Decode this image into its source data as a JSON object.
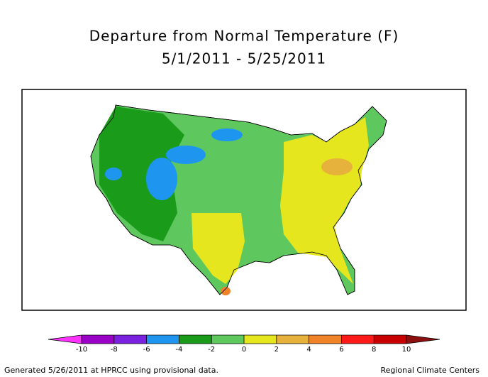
{
  "header": {
    "title": "Departure from Normal Temperature (F)",
    "subtitle": "5/1/2011 - 5/25/2011"
  },
  "legend": {
    "bounds": [
      -10,
      -8,
      -6,
      -4,
      -2,
      0,
      2,
      4,
      6,
      8,
      10
    ],
    "colors": [
      "#ff33ff",
      "#9b00c8",
      "#7a22e0",
      "#1e96f0",
      "#1a9c1a",
      "#5ec85e",
      "#e6e61e",
      "#e6b23c",
      "#f08228",
      "#ff1a1a",
      "#c80000",
      "#8c1010"
    ]
  },
  "footer": {
    "left": "Generated 5/26/2011 at HPRCC using provisional data.",
    "right": "Regional Climate Centers"
  }
}
